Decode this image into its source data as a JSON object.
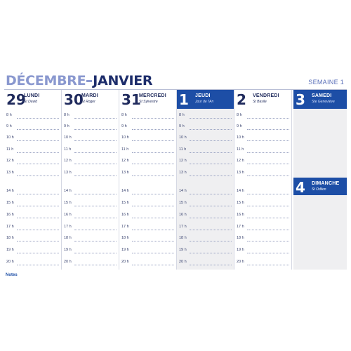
{
  "header": {
    "month_a": "DÉCEMBRE",
    "month_b": "JANVIER",
    "week": "SEMAINE 1"
  },
  "hours": [
    "8 h",
    "9 h",
    "10 h",
    "11 h",
    "12 h",
    "13 h",
    "14 h",
    "15 h",
    "16 h",
    "17 h",
    "18 h",
    "19 h",
    "20 h"
  ],
  "days": [
    {
      "num": "29",
      "name": "LUNDI",
      "saint": "St David",
      "highlight": false
    },
    {
      "num": "30",
      "name": "MARDI",
      "saint": "St Roger",
      "highlight": false
    },
    {
      "num": "31",
      "name": "MERCREDI",
      "saint": "St Sylvestre",
      "highlight": false
    },
    {
      "num": "1",
      "name": "JEUDI",
      "saint": "Jour de l'An",
      "highlight": true
    },
    {
      "num": "2",
      "name": "VENDREDI",
      "saint": "St Basile",
      "highlight": false
    }
  ],
  "weekend": [
    {
      "num": "3",
      "name": "SAMEDI",
      "saint": "Ste Geneviève"
    },
    {
      "num": "4",
      "name": "DIMANCHE",
      "saint": "St Odilon"
    }
  ],
  "notes_label": "Notes",
  "colors": {
    "accent": "#1d4ea6",
    "light_title": "#8a98cf",
    "dark_title": "#1d2d6b",
    "shade": "#efeff1"
  }
}
